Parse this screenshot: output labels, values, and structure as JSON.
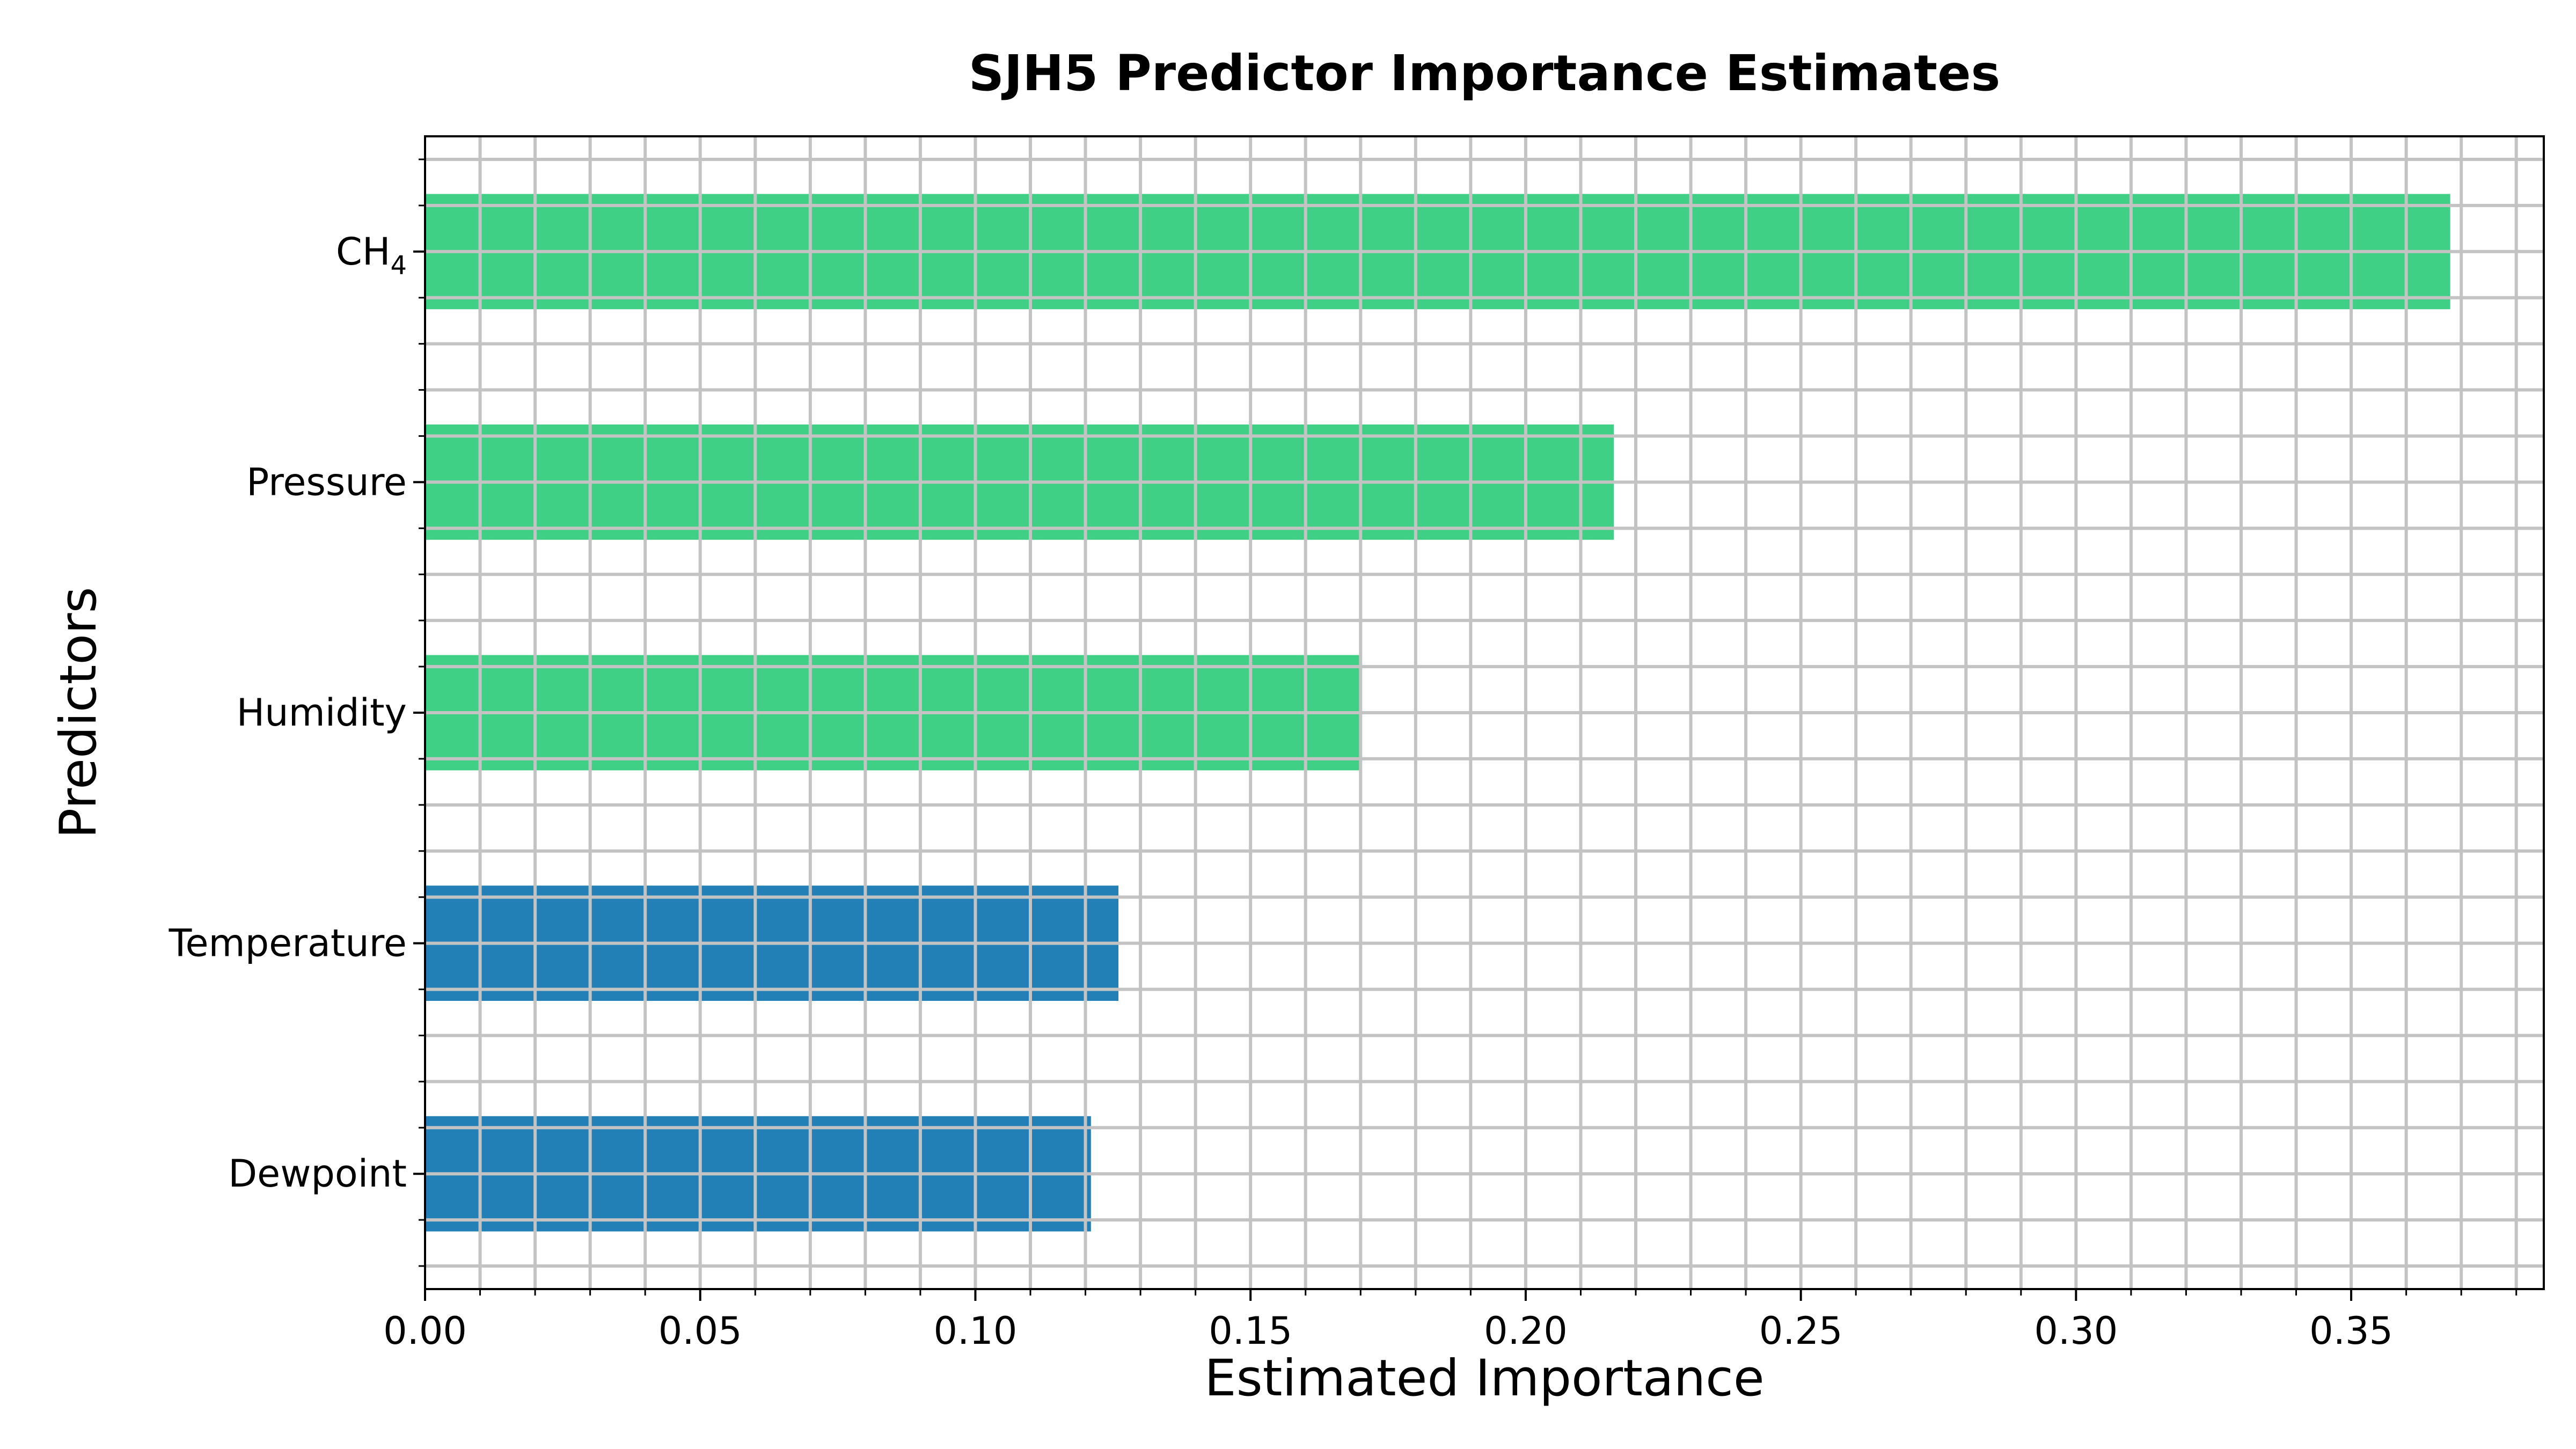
{
  "chart_data": {
    "type": "bar",
    "orientation": "horizontal",
    "title": "SJH5 Predictor Importance Estimates",
    "xlabel": "Estimated Importance",
    "ylabel": "Predictors",
    "xlim": [
      0,
      0.385
    ],
    "x_ticks": [
      "0.00",
      "0.05",
      "0.10",
      "0.15",
      "0.20",
      "0.25",
      "0.30",
      "0.35"
    ],
    "x_tick_values": [
      0.0,
      0.05,
      0.1,
      0.15,
      0.2,
      0.25,
      0.3,
      0.35
    ],
    "x_minor_step": 0.01,
    "grid": true,
    "categories": [
      {
        "label": "CH",
        "label_sub": "4",
        "value": 0.368,
        "color": "#40d085"
      },
      {
        "label": "Pressure",
        "label_sub": "",
        "value": 0.216,
        "color": "#40d085"
      },
      {
        "label": "Humidity",
        "label_sub": "",
        "value": 0.17,
        "color": "#40d085"
      },
      {
        "label": "Temperature",
        "label_sub": "",
        "value": 0.126,
        "color": "#2280b6"
      },
      {
        "label": "Dewpoint",
        "label_sub": "",
        "value": 0.121,
        "color": "#2280b6"
      }
    ],
    "colors": {
      "high": "#40d085",
      "low": "#2280b6",
      "grid": "#c3c3c3"
    }
  }
}
